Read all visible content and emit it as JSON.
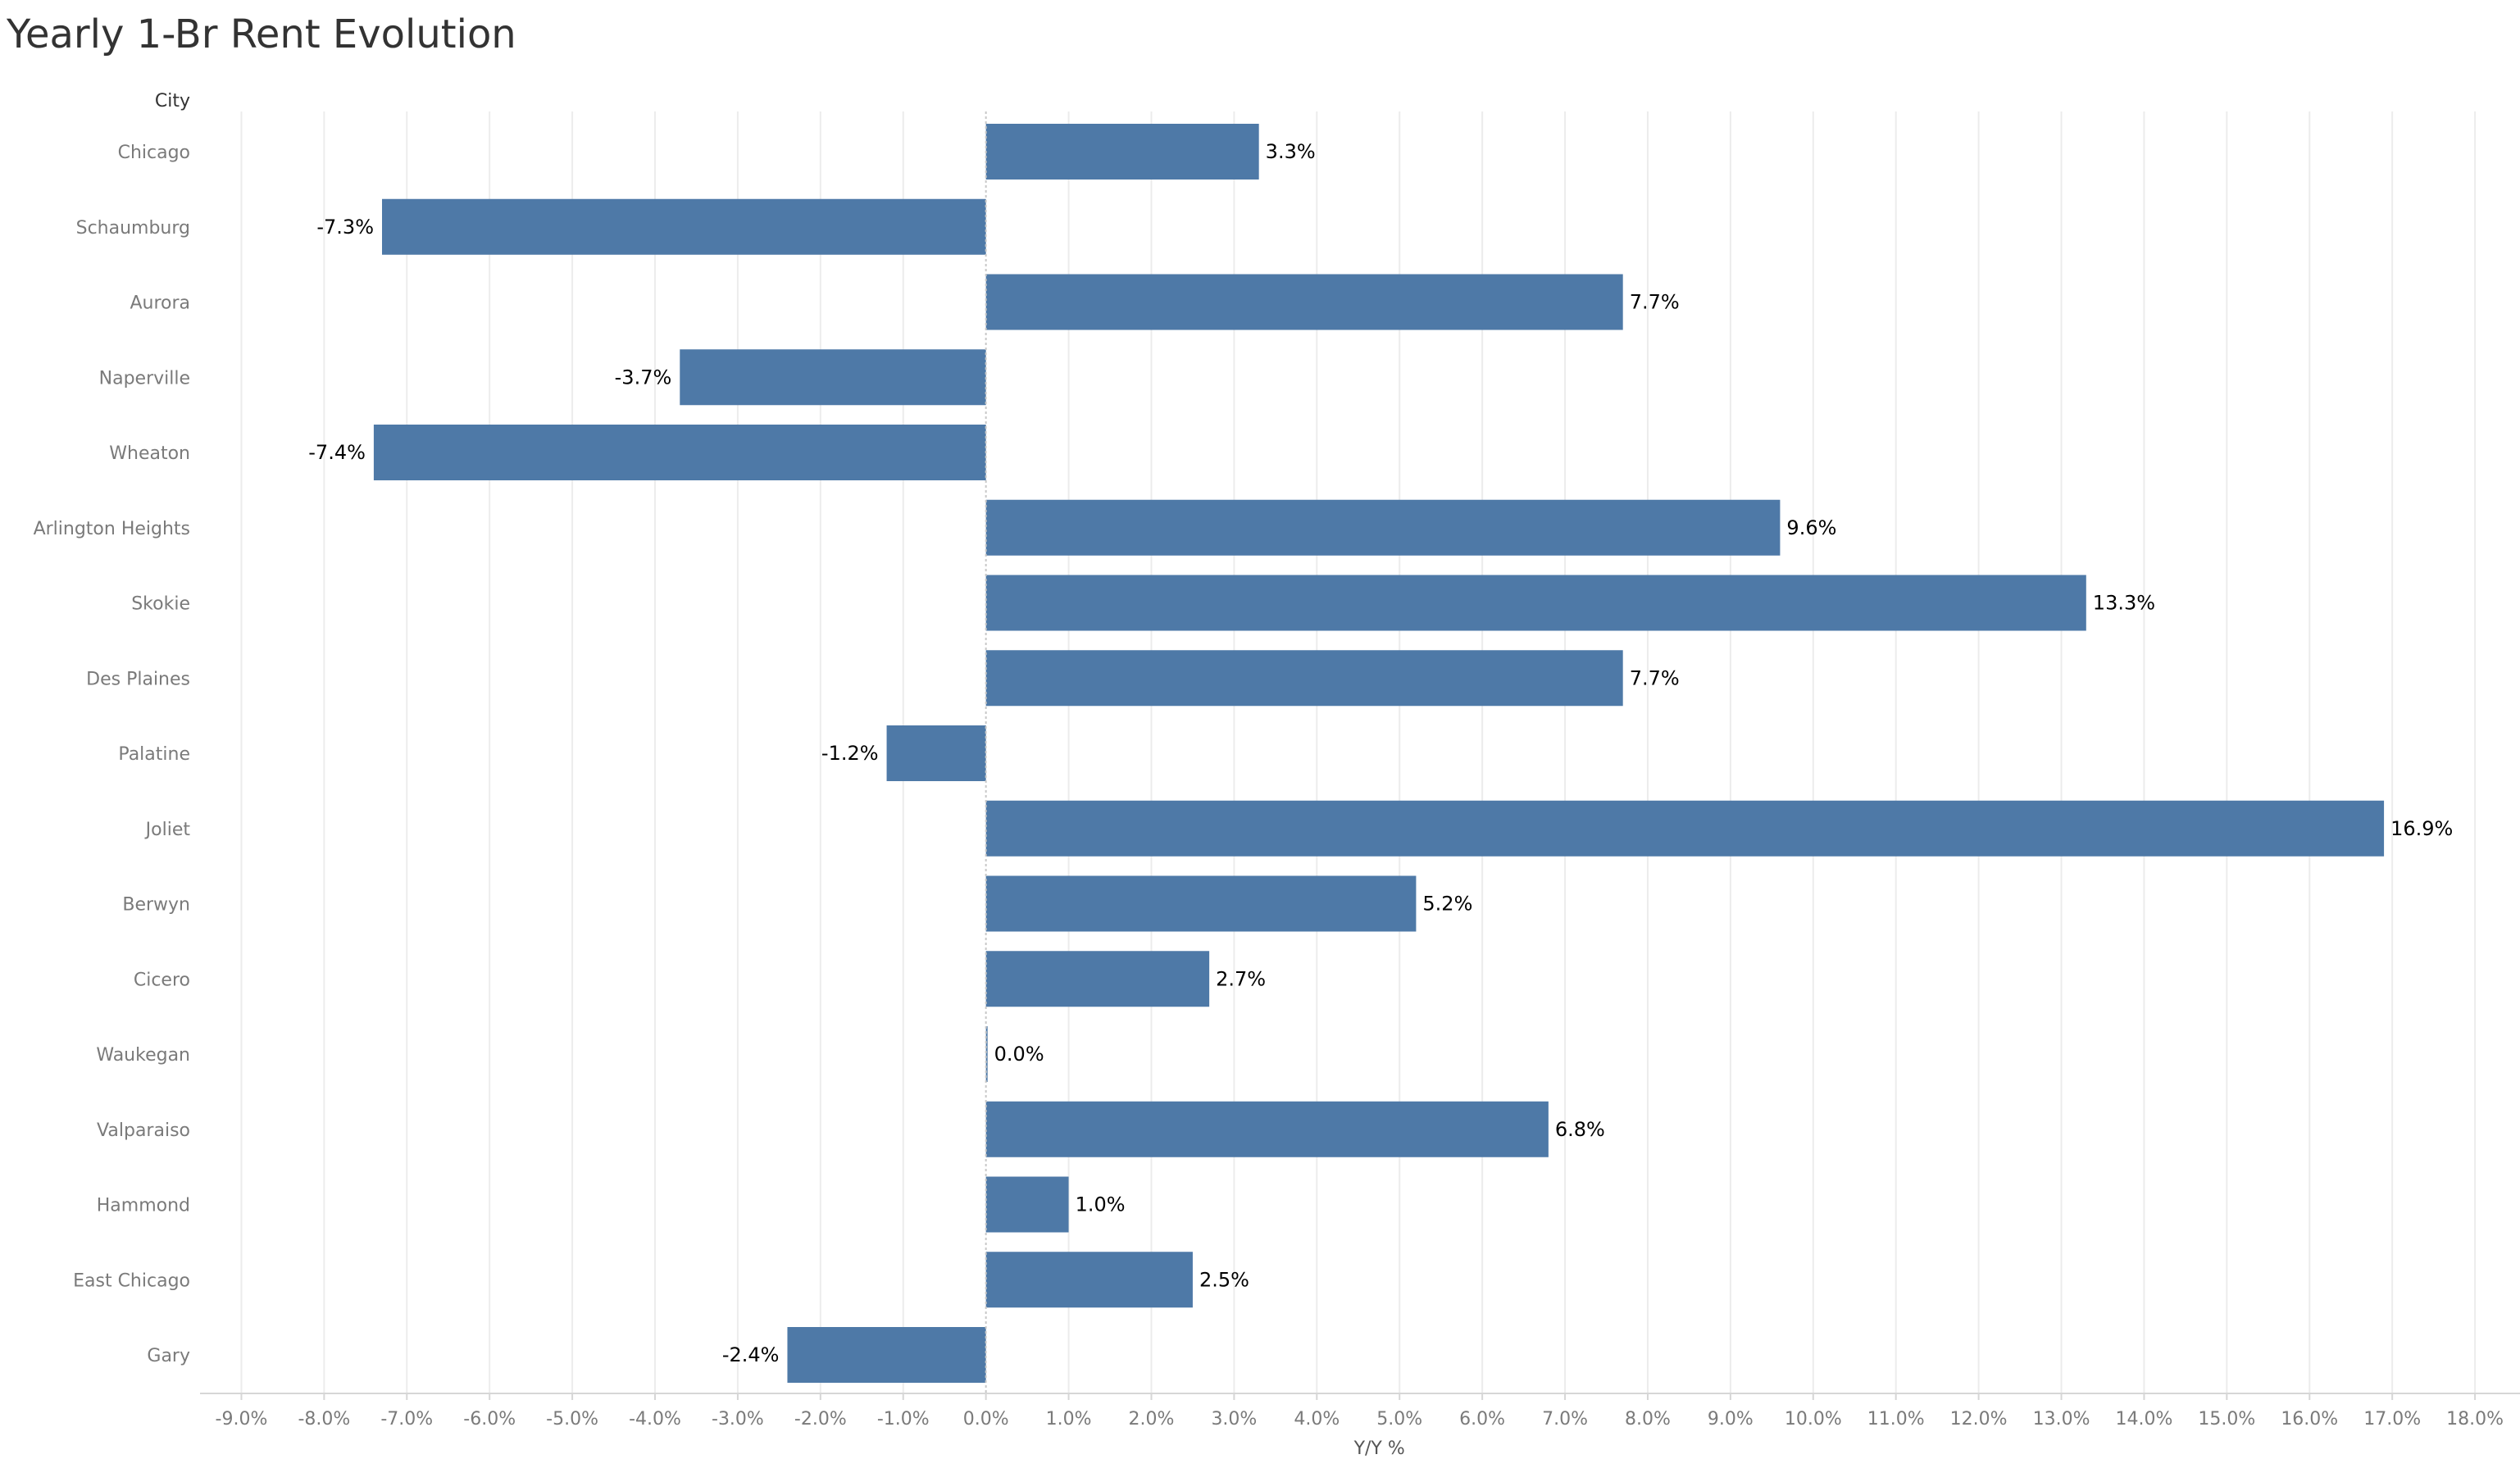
{
  "chart_data": {
    "type": "bar",
    "orientation": "horizontal",
    "title": "Yearly 1-Br Rent Evolution",
    "category_header": "City",
    "xlabel": "Y/Y %",
    "ylabel": "",
    "categories": [
      "Chicago",
      "Schaumburg",
      "Aurora",
      "Naperville",
      "Wheaton",
      "Arlington Heights",
      "Skokie",
      "Des Plaines",
      "Palatine",
      "Joliet",
      "Berwyn",
      "Cicero",
      "Waukegan",
      "Valparaiso",
      "Hammond",
      "East Chicago",
      "Gary"
    ],
    "values": [
      3.3,
      -7.3,
      7.7,
      -3.7,
      -7.4,
      9.6,
      13.3,
      7.7,
      -1.2,
      16.9,
      5.2,
      2.7,
      0.0,
      6.8,
      1.0,
      2.5,
      -2.4
    ],
    "value_labels": [
      "3.3%",
      "-7.3%",
      "7.7%",
      "-3.7%",
      "-7.4%",
      "9.6%",
      "13.3%",
      "7.7%",
      "-1.2%",
      "16.9%",
      "5.2%",
      "2.7%",
      "0.0%",
      "6.8%",
      "1.0%",
      "2.5%",
      "-2.4%"
    ],
    "xlim": [
      -9.5,
      19.0
    ],
    "x_ticks": [
      -9,
      -8,
      -7,
      -6,
      -5,
      -4,
      -3,
      -2,
      -1,
      0,
      1,
      2,
      3,
      4,
      5,
      6,
      7,
      8,
      9,
      10,
      11,
      12,
      13,
      14,
      15,
      16,
      17,
      18
    ],
    "x_tick_labels": [
      "-9.0%",
      "-8.0%",
      "-7.0%",
      "-6.0%",
      "-5.0%",
      "-4.0%",
      "-3.0%",
      "-2.0%",
      "-1.0%",
      "0.0%",
      "1.0%",
      "2.0%",
      "3.0%",
      "4.0%",
      "5.0%",
      "6.0%",
      "7.0%",
      "8.0%",
      "9.0%",
      "10.0%",
      "11.0%",
      "12.0%",
      "13.0%",
      "14.0%",
      "15.0%",
      "16.0%",
      "17.0%",
      "18.0%"
    ],
    "grid": true,
    "legend": "none",
    "bar_color": "#4e79a7"
  }
}
